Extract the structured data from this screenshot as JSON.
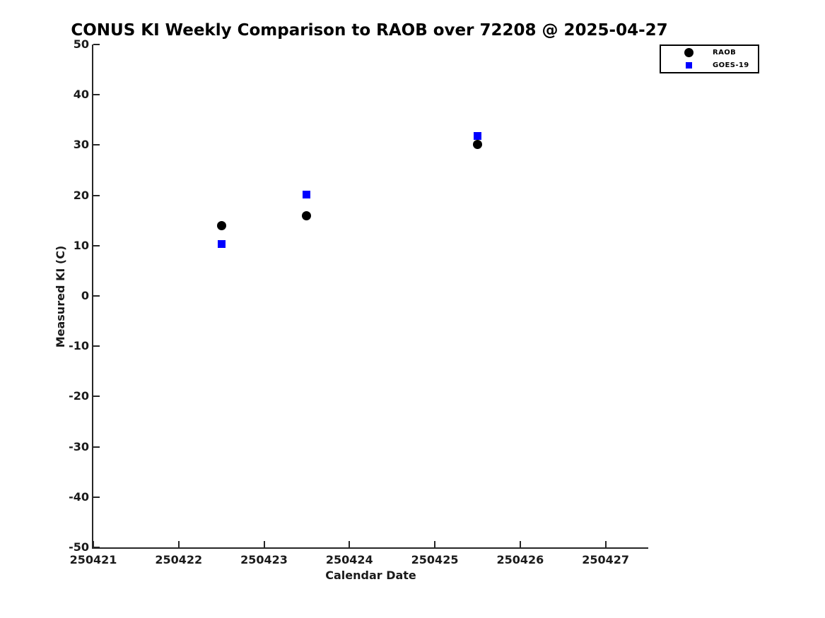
{
  "chart_data": {
    "type": "scatter",
    "title": "CONUS KI Weekly Comparison to RAOB over 72208 @ 2025-04-27",
    "xlabel": "Calendar Date",
    "ylabel": "Measured KI (C)",
    "xlim": [
      250421,
      250427.5
    ],
    "ylim": [
      -50,
      50
    ],
    "xticks": [
      250421,
      250422,
      250423,
      250424,
      250425,
      250426,
      250427
    ],
    "yticks": [
      -50,
      -40,
      -30,
      -20,
      -10,
      0,
      10,
      20,
      30,
      40,
      50
    ],
    "grid": false,
    "legend_position": "top-right",
    "series": [
      {
        "name": "RAOB",
        "marker": "circle",
        "color": "#000000",
        "marker_size": 13,
        "x": [
          250422.5,
          250423.5,
          250425.5
        ],
        "y": [
          14.0,
          16.0,
          30.1
        ]
      },
      {
        "name": "GOES-19",
        "marker": "square",
        "color": "#0000ff",
        "marker_size": 11,
        "x": [
          250422.5,
          250423.5,
          250425.5
        ],
        "y": [
          10.3,
          20.2,
          31.8
        ]
      }
    ]
  }
}
